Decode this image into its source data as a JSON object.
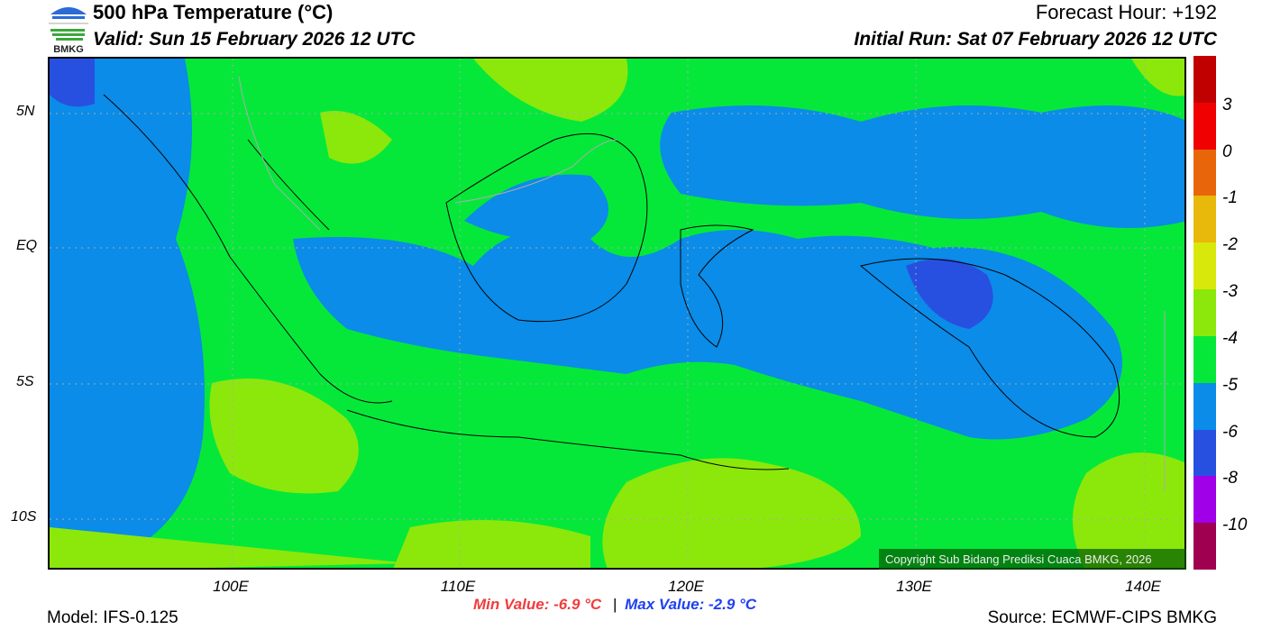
{
  "header": {
    "title": "500 hPa Temperature (°C)",
    "valid": "Valid: Sun 15 February 2026 12 UTC",
    "forecast_hour": "Forecast Hour: +192",
    "initial_run": "Initial Run: Sat 07 February 2026 12 UTC",
    "logo_text": "BMKG"
  },
  "axes": {
    "lat_labels": [
      "5N",
      "EQ",
      "5S",
      "10S"
    ],
    "lon_labels": [
      "100E",
      "110E",
      "120E",
      "130E",
      "140E"
    ]
  },
  "colorbar": {
    "labels": [
      "3",
      "0",
      "-1",
      "-2",
      "-3",
      "-4",
      "-5",
      "-6",
      "-8",
      "-10"
    ],
    "colors": [
      "#c00000",
      "#f00000",
      "#e8650a",
      "#e8b80a",
      "#d8e80a",
      "#8ce80a",
      "#05e83a",
      "#0a8ce8",
      "#2850e0",
      "#a000e8",
      "#a00050"
    ]
  },
  "map_colors": {
    "green": "#05e83a",
    "blue": "#0a8ce8",
    "darkblue": "#2850e0",
    "yellowgreen": "#8ce80a",
    "yellow": "#d8e80a"
  },
  "copyright": "Copyright Sub Bidang Prediksi Cuaca BMKG, 2026",
  "stats": {
    "min": "Min Value: -6.9 °C",
    "separator": "|",
    "max": "Max Value: -2.9 °C",
    "min_color": "#f03c3c",
    "max_color": "#2040f0"
  },
  "footer": {
    "model": "Model: IFS-0.125",
    "source": "Source: ECMWF-CIPS BMKG"
  }
}
